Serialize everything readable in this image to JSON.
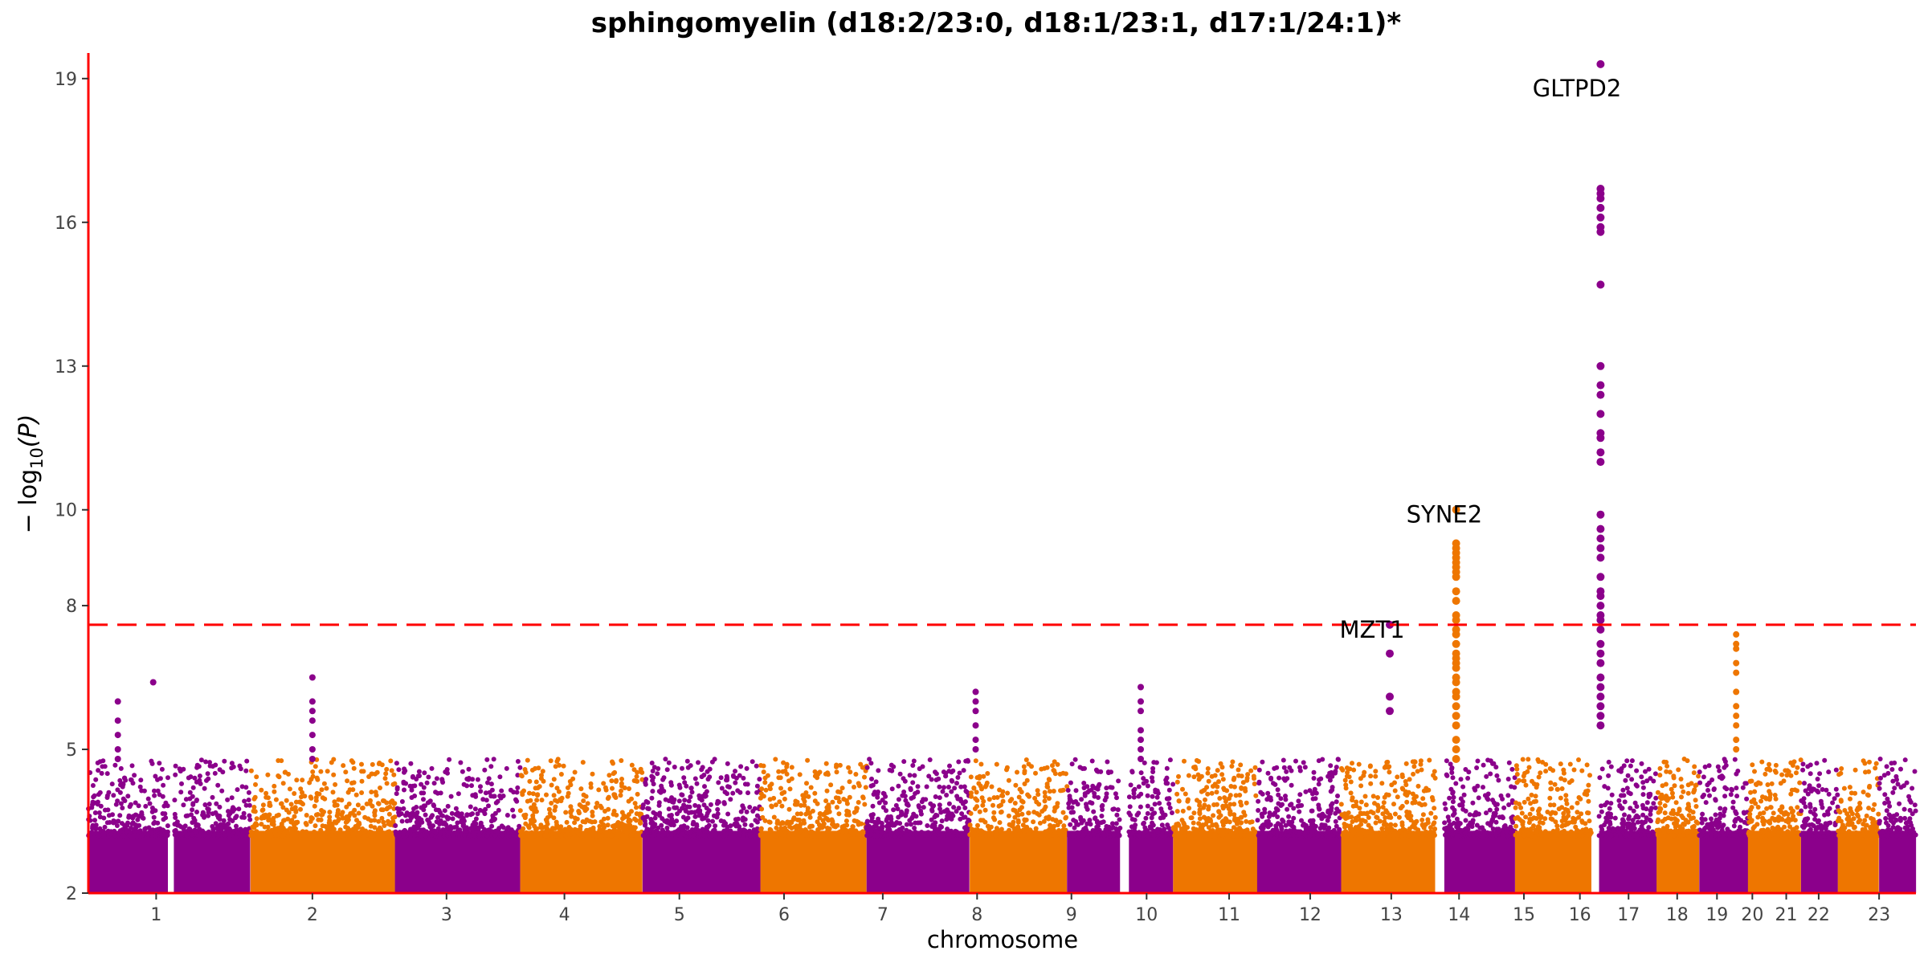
{
  "chart_data": {
    "type": "scatter",
    "title": "sphingomyelin (d18:2/23:0, d18:1/23:1, d17:1/24:1)*",
    "xlabel": "chromosome",
    "ylabel": "− log10(P)",
    "ylabel_parts": {
      "prefix": "− log",
      "subscript": "10",
      "suffix": "(P)"
    },
    "ylim": [
      2,
      19.5
    ],
    "yticks": [
      2,
      5,
      8,
      10,
      13,
      16,
      19
    ],
    "significance_threshold": 7.6,
    "colors": {
      "odd": "#8B008B",
      "even": "#EE7600",
      "threshold": "#FF0000",
      "axis": "#FF0000"
    },
    "chromosomes": [
      {
        "label": "1",
        "start": 0.0,
        "end": 5.4,
        "color": "purple"
      },
      {
        "label": "2",
        "start": 5.8,
        "end": 11.0,
        "color": "purple"
      },
      {
        "label": "3",
        "start": 11.0,
        "end": 20.8,
        "color": "orange"
      },
      {
        "label": "4",
        "start": 20.8,
        "end": 29.3,
        "color": "purple"
      },
      {
        "label": "5",
        "start": 29.3,
        "end": 37.6,
        "color": "orange"
      },
      {
        "label": "6",
        "start": 37.6,
        "end": 45.6,
        "color": "purple"
      },
      {
        "label": "7",
        "start": 45.6,
        "end": 52.8,
        "color": "orange"
      },
      {
        "label": "8",
        "start": 52.8,
        "end": 59.8,
        "color": "purple"
      },
      {
        "label": "9",
        "start": 59.8,
        "end": 66.4,
        "color": "orange"
      },
      {
        "label": "10",
        "start": 66.4,
        "end": 70.0,
        "color": "purple"
      },
      {
        "label": "11",
        "start": 70.6,
        "end": 73.6,
        "color": "purple"
      },
      {
        "label": "12",
        "start": 73.6,
        "end": 79.3,
        "color": "orange"
      },
      {
        "label": "13",
        "start": 79.3,
        "end": 85.0,
        "color": "purple"
      },
      {
        "label": "14",
        "start": 85.0,
        "end": 91.4,
        "color": "orange"
      },
      {
        "label": "15",
        "start": 92.0,
        "end": 96.8,
        "color": "purple"
      },
      {
        "label": "16",
        "start": 96.8,
        "end": 102.0,
        "color": "orange"
      },
      {
        "label": "17",
        "start": 102.5,
        "end": 106.4,
        "color": "purple"
      },
      {
        "label": "18",
        "start": 106.4,
        "end": 109.3,
        "color": "orange"
      },
      {
        "label": "19",
        "start": 109.3,
        "end": 112.6,
        "color": "purple"
      },
      {
        "label": "20",
        "start": 112.6,
        "end": 116.2,
        "color": "orange"
      },
      {
        "label": "21",
        "start": 116.2,
        "end": 118.7,
        "color": "purple"
      },
      {
        "label": "22",
        "start": 118.7,
        "end": 121.5,
        "color": "orange"
      },
      {
        "label": "23",
        "start": 121.5,
        "end": 124.0,
        "color": "purple"
      }
    ],
    "xticks": [
      {
        "label": "1",
        "x": 4.6
      },
      {
        "label": "2",
        "x": 15.2
      },
      {
        "label": "3",
        "x": 24.3
      },
      {
        "label": "4",
        "x": 32.3
      },
      {
        "label": "5",
        "x": 40.1
      },
      {
        "label": "6",
        "x": 47.2
      },
      {
        "label": "7",
        "x": 53.9
      },
      {
        "label": "8",
        "x": 60.3
      },
      {
        "label": "9",
        "x": 66.7
      },
      {
        "label": "10",
        "x": 71.8
      },
      {
        "label": "11",
        "x": 77.4
      },
      {
        "label": "12",
        "x": 82.9
      },
      {
        "label": "13",
        "x": 88.4
      },
      {
        "label": "14",
        "x": 93.0
      },
      {
        "label": "15",
        "x": 97.4
      },
      {
        "label": "16",
        "x": 101.2
      },
      {
        "label": "17",
        "x": 104.5
      },
      {
        "label": "18",
        "x": 107.8
      },
      {
        "label": "19",
        "x": 110.5
      },
      {
        "label": "20",
        "x": 112.9
      },
      {
        "label": "21",
        "x": 115.2
      },
      {
        "label": "22",
        "x": 117.4
      },
      {
        "label": "23",
        "x": 121.5
      }
    ],
    "peaks": [
      {
        "gene": "GLTPD2",
        "chromosome": "17",
        "x": 102.6,
        "max_y": 19.3,
        "points": [
          19.3,
          16.7,
          16.6,
          16.5,
          16.3,
          16.1,
          15.9,
          15.8,
          14.7,
          13.0,
          12.6,
          12.4,
          12.0,
          11.6,
          11.5,
          11.2,
          11.0,
          9.9,
          9.6,
          9.4,
          9.2,
          9.0,
          8.6,
          8.3,
          8.2,
          8.0,
          7.8,
          7.7,
          7.5,
          7.2,
          7.0,
          6.8,
          6.5,
          6.3,
          6.1,
          5.9,
          5.7,
          5.5
        ]
      },
      {
        "gene": "SYNE2",
        "chromosome": "14",
        "x": 92.8,
        "max_y": 10.0,
        "points": [
          10.0,
          9.3,
          9.2,
          9.1,
          9.0,
          8.9,
          8.8,
          8.7,
          8.6,
          8.3,
          8.1,
          7.8,
          7.7,
          7.5,
          7.4,
          7.2,
          7.0,
          6.9,
          6.8,
          6.7,
          6.5,
          6.4,
          6.2,
          6.1,
          5.9,
          5.7,
          5.5,
          5.2,
          5.0,
          4.8
        ]
      },
      {
        "gene": "MZT1",
        "chromosome": "13",
        "x": 88.3,
        "max_y": 7.6,
        "points": [
          7.6,
          7.0,
          6.1,
          5.8
        ]
      }
    ],
    "minor_peaks": [
      {
        "chromosome": "20",
        "x": 111.8,
        "points": [
          7.4,
          7.2,
          7.1,
          6.8,
          6.6,
          6.2,
          5.9,
          5.7,
          5.5,
          5.2,
          5.0
        ]
      },
      {
        "chromosome": "2",
        "x": 15.2,
        "points": [
          6.5,
          6.0,
          5.8,
          5.6,
          5.3,
          5.0,
          4.8
        ]
      },
      {
        "chromosome": "10",
        "x": 71.4,
        "points": [
          6.3,
          6.0,
          5.8,
          5.4,
          5.2,
          5.0,
          4.8
        ]
      },
      {
        "chromosome": "8",
        "x": 60.2,
        "points": [
          6.2,
          6.0,
          5.8,
          5.5,
          5.2,
          5.0
        ]
      },
      {
        "chromosome": "1",
        "x": 2.0,
        "points": [
          6.0,
          5.6,
          5.3,
          5.0,
          4.8
        ]
      },
      {
        "chromosome": "1",
        "x": 4.4,
        "points": [
          6.4
        ]
      }
    ],
    "labels": [
      {
        "gene": "GLTPD2",
        "x": 101.0,
        "y": 18.8
      },
      {
        "gene": "SYNE2",
        "x": 92.0,
        "y": 9.9
      },
      {
        "gene": "MZT1",
        "x": 87.1,
        "y": 7.5
      }
    ]
  }
}
